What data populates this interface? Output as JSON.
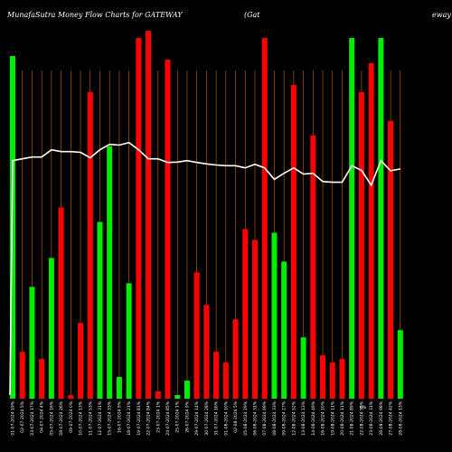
{
  "chart_data": {
    "type": "bar",
    "title_left": "MunafaSutra  Money Flow  Charts for GATEWAY",
    "title_mid": "(Gat",
    "title_right": "eway",
    "colors": {
      "background": "#000000",
      "up": "#00ee00",
      "down": "#ff0000",
      "grid": "#c86400",
      "line": "#ffffff"
    },
    "categories": [
      "01-07-2024 19%",
      "02-07-2024 5%",
      "03-07-2024 17%",
      "04-07-2024 4%",
      "05-07-2024 16%",
      "08-07-2024 26%",
      "09-07-2024 0%",
      "10-07-2024 13%",
      "11-07-2024 53%",
      "12-07-2024 31%",
      "15-07-2024 33%",
      "16-07-2024 9%",
      "18-07-2024 21%",
      "19-07-2024 81%",
      "22-07-2024 84%",
      "23-07-2024 1%",
      "24-07-2024 85%",
      "25-07-2024 1%",
      "26-07-2024 9%",
      "29-07-2024 14%",
      "30-07-2024 28%",
      "31-07-2024 16%",
      "01-08-2024 10%",
      "02-08-2024 5%",
      "05-08-2024 29%",
      "06-08-2024 31%",
      "07-08-2024 99%",
      "08-08-2024 33%",
      "09-08-2024 27%",
      "12-08-2024 52%",
      "13-08-2024 13%",
      "14-08-2024 49%",
      "16-08-2024 10%",
      "19-08-2024 11%",
      "20-08-2024 11%",
      "21-08-2024 89%",
      "22-08-2024 59%",
      "23-08-2024 31%",
      "26-08-2024 98%",
      "27-08-2024 42%",
      "28-08-2024 13%"
    ],
    "values": [
      95,
      13,
      31,
      11,
      39,
      53,
      1,
      21,
      85,
      49,
      70,
      6,
      32,
      100,
      102,
      2,
      94,
      1,
      5,
      35,
      26,
      13,
      10,
      22,
      47,
      44,
      100,
      46,
      38,
      87,
      17,
      73,
      12,
      10,
      11,
      100,
      85,
      93,
      100,
      77,
      19
    ],
    "directions": [
      "up",
      "down",
      "up",
      "down",
      "up",
      "down",
      "down",
      "down",
      "down",
      "up",
      "up",
      "up",
      "up",
      "down",
      "down",
      "down",
      "down",
      "up",
      "up",
      "down",
      "down",
      "down",
      "down",
      "down",
      "down",
      "down",
      "down",
      "up",
      "up",
      "down",
      "up",
      "down",
      "down",
      "down",
      "down",
      "up",
      "down",
      "down",
      "up",
      "down",
      "up"
    ],
    "line_values": [
      66,
      66.5,
      67,
      67,
      69,
      68.5,
      68.5,
      68.3,
      66.8,
      69,
      70.5,
      70.3,
      71,
      69,
      66.5,
      66.5,
      65.5,
      65.6,
      66,
      65.5,
      65.1,
      64.8,
      64.6,
      64.6,
      64,
      65,
      64,
      60.8,
      62.5,
      64,
      62.3,
      62.5,
      60.2,
      60,
      60,
      64.6,
      63.3,
      59.2,
      66,
      63.2,
      63.7
    ],
    "ylim": [
      0,
      110
    ],
    "extra_tick_label": "0%"
  }
}
